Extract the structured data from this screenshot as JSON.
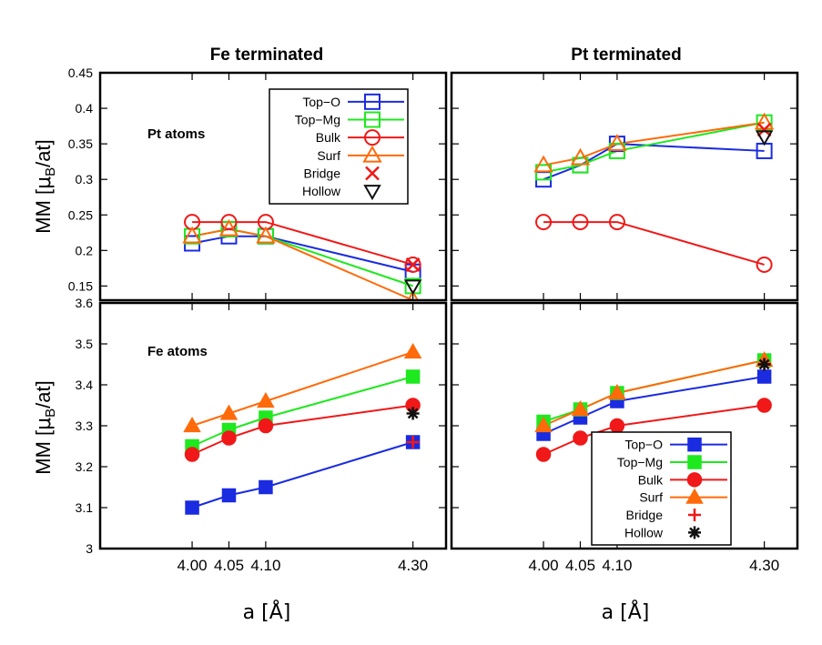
{
  "chart_data": {
    "type": "line",
    "layout": "2x2 grid of panels",
    "column_titles": [
      "Fe terminated",
      "Pt terminated"
    ],
    "xlabel": "a [Å]",
    "ylabel_prefix": "MM [",
    "ylabel_mu": "μ",
    "ylabel_sub": "B",
    "ylabel_suffix": "/at]",
    "x_ticks": [
      4.0,
      4.05,
      4.1,
      4.3
    ],
    "x_tick_labels": [
      "4.00",
      "4.05",
      "4.10",
      "4.30"
    ],
    "xlim": [
      3.875,
      4.345
    ],
    "colors": {
      "top_o": "#1a2be0",
      "top_mg": "#1ee81e",
      "bulk": "#f01818",
      "surf": "#ff6a0a",
      "bridge": "#f01818",
      "hollow": "#111111"
    },
    "rows": [
      {
        "name": "pt-atoms",
        "ylim": [
          0.13,
          0.45
        ],
        "y_ticks": [
          0.15,
          0.2,
          0.25,
          0.3,
          0.35,
          0.4,
          0.45
        ],
        "y_tick_labels": [
          "0.15",
          "0.2",
          "0.25",
          "0.3",
          "0.35",
          "0.4",
          "0.45"
        ],
        "annotation": "Pt atoms"
      },
      {
        "name": "fe-atoms",
        "ylim": [
          3.0,
          3.6
        ],
        "y_ticks": [
          3.0,
          3.1,
          3.2,
          3.3,
          3.4,
          3.5,
          3.6
        ],
        "y_tick_labels": [
          "3",
          "3.1",
          "3.2",
          "3.3",
          "3.4",
          "3.5",
          "3.6"
        ],
        "annotation": "Fe atoms"
      }
    ],
    "panels": [
      {
        "id": "fe-term-pt-atoms",
        "row": 0,
        "col": 0,
        "marker_fill": "open",
        "legend": "top-right",
        "series": [
          {
            "name": "Top−O",
            "key": "top_o",
            "marker": "square",
            "x": [
              4.0,
              4.05,
              4.1,
              4.3
            ],
            "y": [
              0.21,
              0.22,
              0.22,
              0.17
            ]
          },
          {
            "name": "Top−Mg",
            "key": "top_mg",
            "marker": "square",
            "x": [
              4.0,
              4.05,
              4.1,
              4.3
            ],
            "y": [
              0.22,
              0.23,
              0.22,
              0.15
            ]
          },
          {
            "name": "Bulk",
            "key": "bulk",
            "marker": "circle",
            "x": [
              4.0,
              4.05,
              4.1,
              4.3
            ],
            "y": [
              0.24,
              0.24,
              0.24,
              0.18
            ]
          },
          {
            "name": "Surf",
            "key": "surf",
            "marker": "triangle",
            "x": [
              4.0,
              4.05,
              4.1,
              4.3
            ],
            "y": [
              0.22,
              0.23,
              0.22,
              0.13
            ]
          },
          {
            "name": "Bridge",
            "key": "bridge",
            "marker": "x",
            "x": [
              4.3
            ],
            "y": [
              0.18
            ]
          },
          {
            "name": "Hollow",
            "key": "hollow",
            "marker": "triangle-down",
            "x": [
              4.3
            ],
            "y": [
              0.15
            ]
          }
        ]
      },
      {
        "id": "pt-term-pt-atoms",
        "row": 0,
        "col": 1,
        "marker_fill": "open",
        "legend": "none",
        "series": [
          {
            "name": "Top−O",
            "key": "top_o",
            "marker": "square",
            "x": [
              4.0,
              4.05,
              4.1,
              4.3
            ],
            "y": [
              0.3,
              0.32,
              0.35,
              0.34
            ]
          },
          {
            "name": "Top−Mg",
            "key": "top_mg",
            "marker": "square",
            "x": [
              4.0,
              4.05,
              4.1,
              4.3
            ],
            "y": [
              0.31,
              0.32,
              0.34,
              0.38
            ]
          },
          {
            "name": "Bulk",
            "key": "bulk",
            "marker": "circle",
            "x": [
              4.0,
              4.05,
              4.1,
              4.3
            ],
            "y": [
              0.24,
              0.24,
              0.24,
              0.18
            ]
          },
          {
            "name": "Surf",
            "key": "surf",
            "marker": "triangle",
            "x": [
              4.0,
              4.05,
              4.1,
              4.3
            ],
            "y": [
              0.32,
              0.33,
              0.35,
              0.38
            ]
          },
          {
            "name": "Bridge",
            "key": "bridge",
            "marker": "x",
            "x": [
              4.3
            ],
            "y": [
              0.37
            ]
          },
          {
            "name": "Hollow",
            "key": "hollow",
            "marker": "triangle-down",
            "x": [
              4.3
            ],
            "y": [
              0.36
            ]
          }
        ]
      },
      {
        "id": "fe-term-fe-atoms",
        "row": 1,
        "col": 0,
        "marker_fill": "filled",
        "legend": "none",
        "series": [
          {
            "name": "Top−O",
            "key": "top_o",
            "marker": "square",
            "x": [
              4.0,
              4.05,
              4.1,
              4.3
            ],
            "y": [
              3.1,
              3.13,
              3.15,
              3.26
            ]
          },
          {
            "name": "Top−Mg",
            "key": "top_mg",
            "marker": "square",
            "x": [
              4.0,
              4.05,
              4.1,
              4.3
            ],
            "y": [
              3.25,
              3.29,
              3.32,
              3.42
            ]
          },
          {
            "name": "Bulk",
            "key": "bulk",
            "marker": "circle",
            "x": [
              4.0,
              4.05,
              4.1,
              4.3
            ],
            "y": [
              3.23,
              3.27,
              3.3,
              3.35
            ]
          },
          {
            "name": "Surf",
            "key": "surf",
            "marker": "triangle",
            "x": [
              4.0,
              4.05,
              4.1,
              4.3
            ],
            "y": [
              3.3,
              3.33,
              3.36,
              3.48
            ]
          },
          {
            "name": "Bridge",
            "key": "bridge",
            "marker": "plus",
            "x": [
              4.3
            ],
            "y": [
              3.26
            ]
          },
          {
            "name": "Hollow",
            "key": "hollow",
            "marker": "asterisk",
            "x": [
              4.3
            ],
            "y": [
              3.33
            ]
          }
        ]
      },
      {
        "id": "pt-term-fe-atoms",
        "row": 1,
        "col": 1,
        "marker_fill": "filled",
        "legend": "bottom-right",
        "series": [
          {
            "name": "Top−O",
            "key": "top_o",
            "marker": "square",
            "x": [
              4.0,
              4.05,
              4.1,
              4.3
            ],
            "y": [
              3.28,
              3.32,
              3.36,
              3.42
            ]
          },
          {
            "name": "Top−Mg",
            "key": "top_mg",
            "marker": "square",
            "x": [
              4.0,
              4.05,
              4.1,
              4.3
            ],
            "y": [
              3.31,
              3.34,
              3.38,
              3.46
            ]
          },
          {
            "name": "Bulk",
            "key": "bulk",
            "marker": "circle",
            "x": [
              4.0,
              4.05,
              4.1,
              4.3
            ],
            "y": [
              3.23,
              3.27,
              3.3,
              3.35
            ]
          },
          {
            "name": "Surf",
            "key": "surf",
            "marker": "triangle",
            "x": [
              4.0,
              4.05,
              4.1,
              4.3
            ],
            "y": [
              3.3,
              3.34,
              3.38,
              3.46
            ]
          },
          {
            "name": "Bridge",
            "key": "bridge",
            "marker": "plus",
            "x": [
              4.3
            ],
            "y": [
              3.45
            ]
          },
          {
            "name": "Hollow",
            "key": "hollow",
            "marker": "asterisk",
            "x": [
              4.3
            ],
            "y": [
              3.45
            ]
          }
        ]
      }
    ]
  }
}
